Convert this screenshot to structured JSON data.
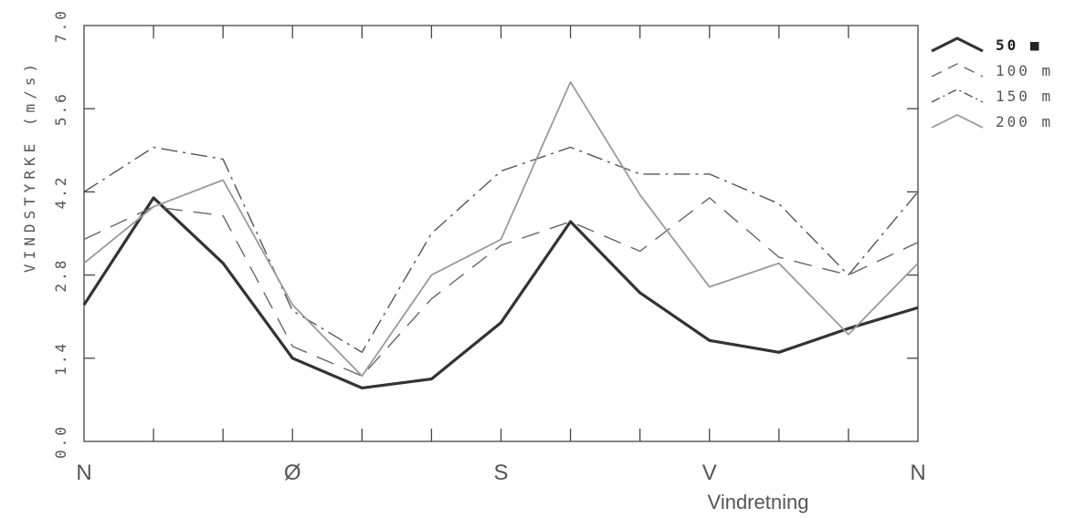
{
  "chart_data": {
    "type": "line",
    "title": "",
    "xlabel": "Vindretning",
    "ylabel": "VINDSTYRKE (m/s)",
    "ylim": [
      0.0,
      7.0
    ],
    "yticks": [
      "0.0",
      "1.4",
      "2.8",
      "4.2",
      "5.6",
      "7.0"
    ],
    "ytick_values": [
      0.0,
      1.4,
      2.8,
      4.2,
      5.6,
      7.0
    ],
    "x": [
      0,
      1,
      2,
      3,
      4,
      5,
      6,
      7,
      8,
      9,
      10,
      11,
      12
    ],
    "xtick_labels": [
      "N",
      "",
      "",
      "Ø",
      "",
      "",
      "S",
      "",
      "",
      "V",
      "",
      "",
      "N"
    ],
    "grid": false,
    "legend_position": "top-right (outside plot)",
    "series": [
      {
        "name": "50",
        "legend_suffix": "■",
        "style": "solid-thick",
        "color": "#333333",
        "values": [
          2.3,
          4.1,
          3.0,
          1.4,
          0.9,
          1.05,
          2.0,
          3.7,
          2.5,
          1.7,
          1.5,
          1.9,
          2.25
        ]
      },
      {
        "name": "100",
        "legend_suffix": "m",
        "style": "dashed",
        "color": "#666666",
        "values": [
          3.4,
          3.95,
          3.8,
          1.6,
          1.1,
          2.4,
          3.3,
          3.7,
          3.2,
          4.1,
          3.1,
          2.8,
          3.35
        ]
      },
      {
        "name": "150",
        "legend_suffix": "m",
        "style": "dash-dot",
        "color": "#555555",
        "values": [
          4.2,
          4.95,
          4.75,
          2.2,
          1.5,
          3.5,
          4.55,
          4.95,
          4.5,
          4.5,
          4.0,
          2.8,
          4.2
        ]
      },
      {
        "name": "200",
        "legend_suffix": "m",
        "style": "solid-thin",
        "color": "#9a9a9a",
        "values": [
          3.0,
          3.95,
          4.4,
          2.3,
          1.1,
          2.8,
          3.4,
          6.05,
          4.15,
          2.6,
          3.0,
          1.8,
          3.0
        ]
      }
    ]
  }
}
